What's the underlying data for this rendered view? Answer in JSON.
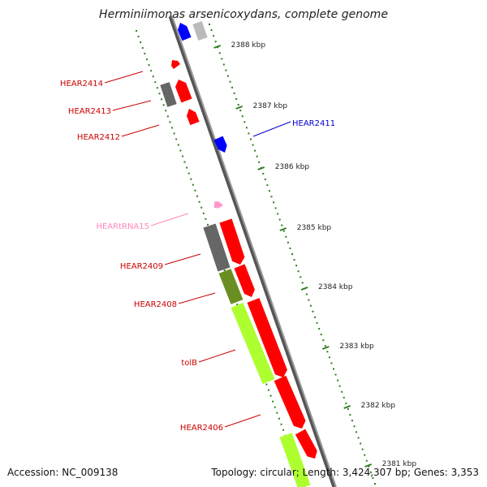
{
  "title": "Herminiimonas arsenicoxydans, complete genome",
  "footer": {
    "accession": "Accession: NC_009138",
    "summary": "Topology: circular; Length: 3,424,307 bp; Genes: 3,353"
  },
  "colors": {
    "red": "#ff0000",
    "blue": "#0000ff",
    "gray": "#666666",
    "lightgray": "#bbbbbb",
    "olive": "#6b8e23",
    "lime": "#adff2f",
    "pink": "#ff99cc",
    "tick": "#2e7d1e"
  },
  "scale_labels": [
    "2388 kbp",
    "2387 kbp",
    "2386 kbp",
    "2385 kbp",
    "2384 kbp",
    "2383 kbp",
    "2382 kbp",
    "2381 kbp"
  ],
  "gene_labels": [
    {
      "text": "HEAR2414",
      "color": "#cc0000"
    },
    {
      "text": "HEAR2413",
      "color": "#cc0000"
    },
    {
      "text": "HEAR2412",
      "color": "#cc0000"
    },
    {
      "text": "HEAR2411",
      "color": "#0000cc"
    },
    {
      "text": "HEARtRNA15",
      "color": "#ff88bb"
    },
    {
      "text": "HEAR2409",
      "color": "#cc0000"
    },
    {
      "text": "HEAR2408",
      "color": "#cc0000"
    },
    {
      "text": "tolB",
      "color": "#cc0000"
    },
    {
      "text": "HEAR2406",
      "color": "#cc0000"
    }
  ]
}
